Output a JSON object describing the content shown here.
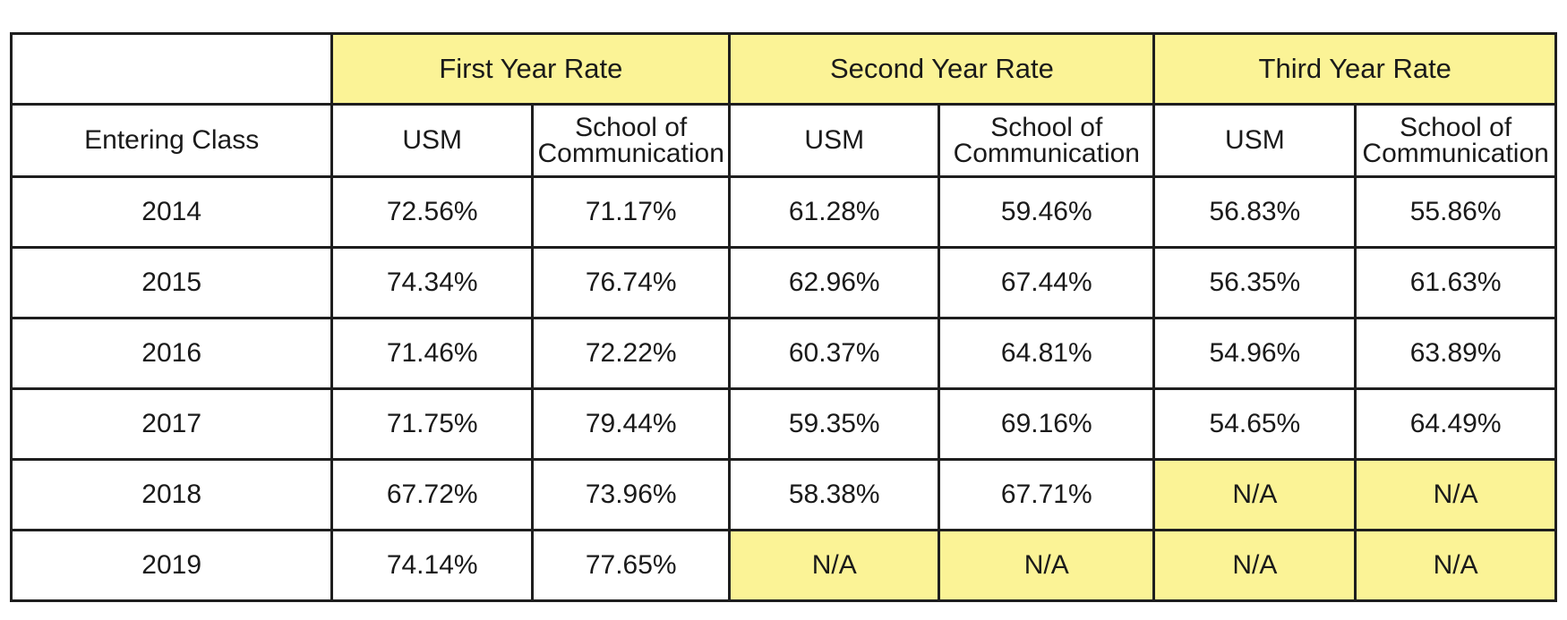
{
  "header": {
    "groups": [
      "First Year Rate",
      "Second Year Rate",
      "Third Year Rate"
    ],
    "row_label": "Entering Class",
    "usm": "USM",
    "school_line1": "School of",
    "school_line2": "Communication"
  },
  "rows": [
    {
      "year": "2014",
      "values": [
        "72.56%",
        "71.17%",
        "61.28%",
        "59.46%",
        "56.83%",
        "55.86%"
      ]
    },
    {
      "year": "2015",
      "values": [
        "74.34%",
        "76.74%",
        "62.96%",
        "67.44%",
        "56.35%",
        "61.63%"
      ]
    },
    {
      "year": "2016",
      "values": [
        "71.46%",
        "72.22%",
        "60.37%",
        "64.81%",
        "54.96%",
        "63.89%"
      ]
    },
    {
      "year": "2017",
      "values": [
        "71.75%",
        "79.44%",
        "59.35%",
        "69.16%",
        "54.65%",
        "64.49%"
      ]
    },
    {
      "year": "2018",
      "values": [
        "67.72%",
        "73.96%",
        "58.38%",
        "67.71%",
        "N/A",
        "N/A"
      ]
    },
    {
      "year": "2019",
      "values": [
        "74.14%",
        "77.65%",
        "N/A",
        "N/A",
        "N/A",
        "N/A"
      ]
    }
  ],
  "colors": {
    "highlight": "#fbf396",
    "border": "#1e1e1e"
  }
}
